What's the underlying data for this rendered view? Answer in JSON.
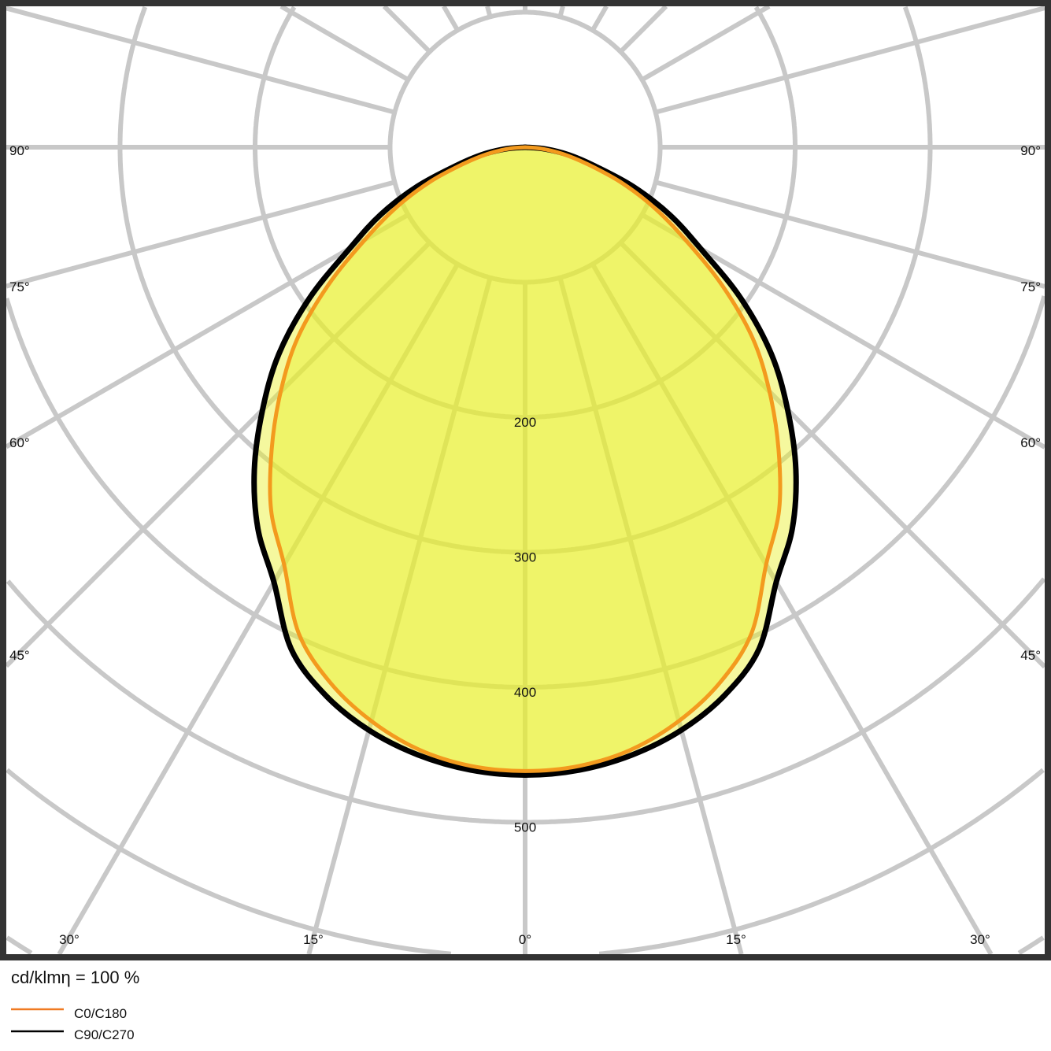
{
  "chart_data": {
    "type": "polar-line",
    "unit_label": "cd/klmη = 100 %",
    "radial_unit": "cd/klm",
    "radial_rings": [
      100,
      200,
      300,
      400,
      500,
      600,
      700,
      800
    ],
    "radial_tick_labels": [
      "200",
      "300",
      "400",
      "500"
    ],
    "angle_tick_labels": {
      "bottom": [
        "30°",
        "15°",
        "0°",
        "15°",
        "30°"
      ],
      "left": [
        "90°",
        "75°",
        "60°",
        "45°"
      ],
      "right": [
        "90°",
        "75°",
        "60°",
        "45°"
      ]
    },
    "angles_deg": [
      0,
      5,
      10,
      15,
      20,
      25,
      30,
      35,
      40,
      45,
      50,
      55,
      60,
      65,
      70,
      75,
      80,
      85,
      90
    ],
    "series": [
      {
        "name": "C0/C180",
        "color": "#f39a1e",
        "values": [
          462,
          460,
          453,
          440,
          422,
          397,
          357,
          328,
          292,
          256,
          220,
          178,
          137,
          105,
          75,
          47,
          28,
          12,
          0
        ]
      },
      {
        "name": "C90/C270",
        "color": "#000000",
        "values": [
          465,
          463,
          457,
          447,
          432,
          410,
          372,
          345,
          312,
          275,
          238,
          195,
          150,
          118,
          85,
          53,
          33,
          15,
          0
        ]
      }
    ],
    "fill_color": "#eef26a",
    "grid_color": "#c8c8c8",
    "frame_color": "#333333",
    "legend_placement": "bottom-left"
  }
}
